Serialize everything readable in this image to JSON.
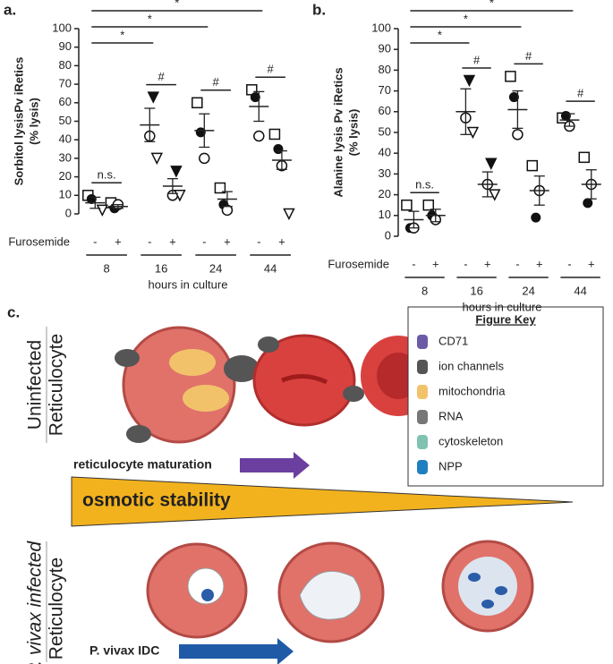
{
  "chart_data": [
    {
      "type": "dot",
      "panel_label": "a.",
      "ylabel": [
        "Sorbitol lysisPv iRetics",
        "(% lysis)"
      ],
      "ylim": [
        0,
        100
      ],
      "yticks": [
        0,
        10,
        20,
        30,
        40,
        50,
        60,
        70,
        80,
        90,
        100
      ],
      "row_label": "Furosemide",
      "categories": [
        "-",
        "+",
        "-",
        "+",
        "-",
        "+",
        "-",
        "+"
      ],
      "groups": [
        "8",
        "16",
        "24",
        "44"
      ],
      "xlabel": "hours in culture",
      "series": [
        {
          "marker": "square",
          "values": [
            10,
            6,
            null,
            null,
            60,
            14,
            67,
            43
          ]
        },
        {
          "marker": "filled-circle",
          "values": [
            8,
            3,
            null,
            null,
            44,
            5,
            63,
            35
          ]
        },
        {
          "marker": "open-circle",
          "values": [
            null,
            5,
            42,
            10,
            30,
            2,
            42,
            26
          ]
        },
        {
          "marker": "filled-triangle",
          "values": [
            null,
            null,
            63,
            23,
            null,
            null,
            null,
            null
          ]
        },
        {
          "marker": "open-triangle",
          "values": [
            2,
            null,
            30,
            10,
            null,
            null,
            null,
            0
          ]
        }
      ],
      "means": [
        6,
        4,
        48,
        15,
        45,
        8,
        58,
        29
      ],
      "errors": [
        3,
        1,
        9,
        4,
        9,
        4,
        8,
        5
      ],
      "annotations": [
        {
          "text": "*",
          "from": 0,
          "to": 6
        },
        {
          "text": "*",
          "from": 0,
          "to": 4
        },
        {
          "text": "*",
          "from": 0,
          "to": 2
        },
        {
          "text": "n.s.",
          "from": 0,
          "to": 1
        },
        {
          "text": "#",
          "from": 2,
          "to": 3
        },
        {
          "text": "#",
          "from": 4,
          "to": 5
        },
        {
          "text": "#",
          "from": 6,
          "to": 7
        }
      ]
    },
    {
      "type": "dot",
      "panel_label": "b.",
      "ylabel": [
        "Alanine lysis Pv iRetics",
        "(% lysis)"
      ],
      "ylim": [
        0,
        100
      ],
      "yticks": [
        0,
        10,
        20,
        30,
        40,
        50,
        60,
        70,
        80,
        90,
        100
      ],
      "row_label": "Furosemide",
      "categories": [
        "-",
        "+",
        "-",
        "+",
        "-",
        "+",
        "-",
        "+"
      ],
      "groups": [
        "8",
        "16",
        "24",
        "44"
      ],
      "xlabel": "hours in culture",
      "series": [
        {
          "marker": "square",
          "values": [
            15,
            15,
            null,
            null,
            77,
            34,
            57,
            38
          ]
        },
        {
          "marker": "filled-circle",
          "values": [
            4,
            10,
            null,
            null,
            67,
            9,
            58,
            16
          ]
        },
        {
          "marker": "open-circle",
          "values": [
            4,
            8,
            57,
            25,
            49,
            22,
            53,
            25
          ]
        },
        {
          "marker": "filled-triangle",
          "values": [
            null,
            null,
            75,
            35,
            null,
            null,
            null,
            null
          ]
        },
        {
          "marker": "open-triangle",
          "values": [
            null,
            null,
            50,
            20,
            null,
            null,
            null,
            null
          ]
        }
      ],
      "means": [
        8,
        10,
        60,
        25,
        61,
        22,
        56,
        25
      ],
      "errors": [
        4,
        3,
        11,
        6,
        9,
        7,
        3,
        7
      ],
      "annotations": [
        {
          "text": "*",
          "from": 0,
          "to": 6
        },
        {
          "text": "*",
          "from": 0,
          "to": 4
        },
        {
          "text": "*",
          "from": 0,
          "to": 2
        },
        {
          "text": "n.s.",
          "from": 0,
          "to": 1
        },
        {
          "text": "#",
          "from": 2,
          "to": 3
        },
        {
          "text": "#",
          "from": 4,
          "to": 5
        },
        {
          "text": "#",
          "from": 6,
          "to": 7
        }
      ]
    }
  ],
  "diagram": {
    "panel_label": "c.",
    "uninfected_label": [
      "Uninfected",
      "Reticulocyte"
    ],
    "maturation_label": "reticulocyte maturation",
    "stability_label": "osmotic stability",
    "infected_label": [
      "P. vivax infected",
      "Reticulocyte"
    ],
    "idc_label": "P. vivax IDC",
    "key": {
      "title": "Figure Key",
      "items": [
        "CD71",
        "ion channels",
        "mitochondria",
        "RNA",
        "cytoskeleton",
        "NPP"
      ]
    }
  }
}
